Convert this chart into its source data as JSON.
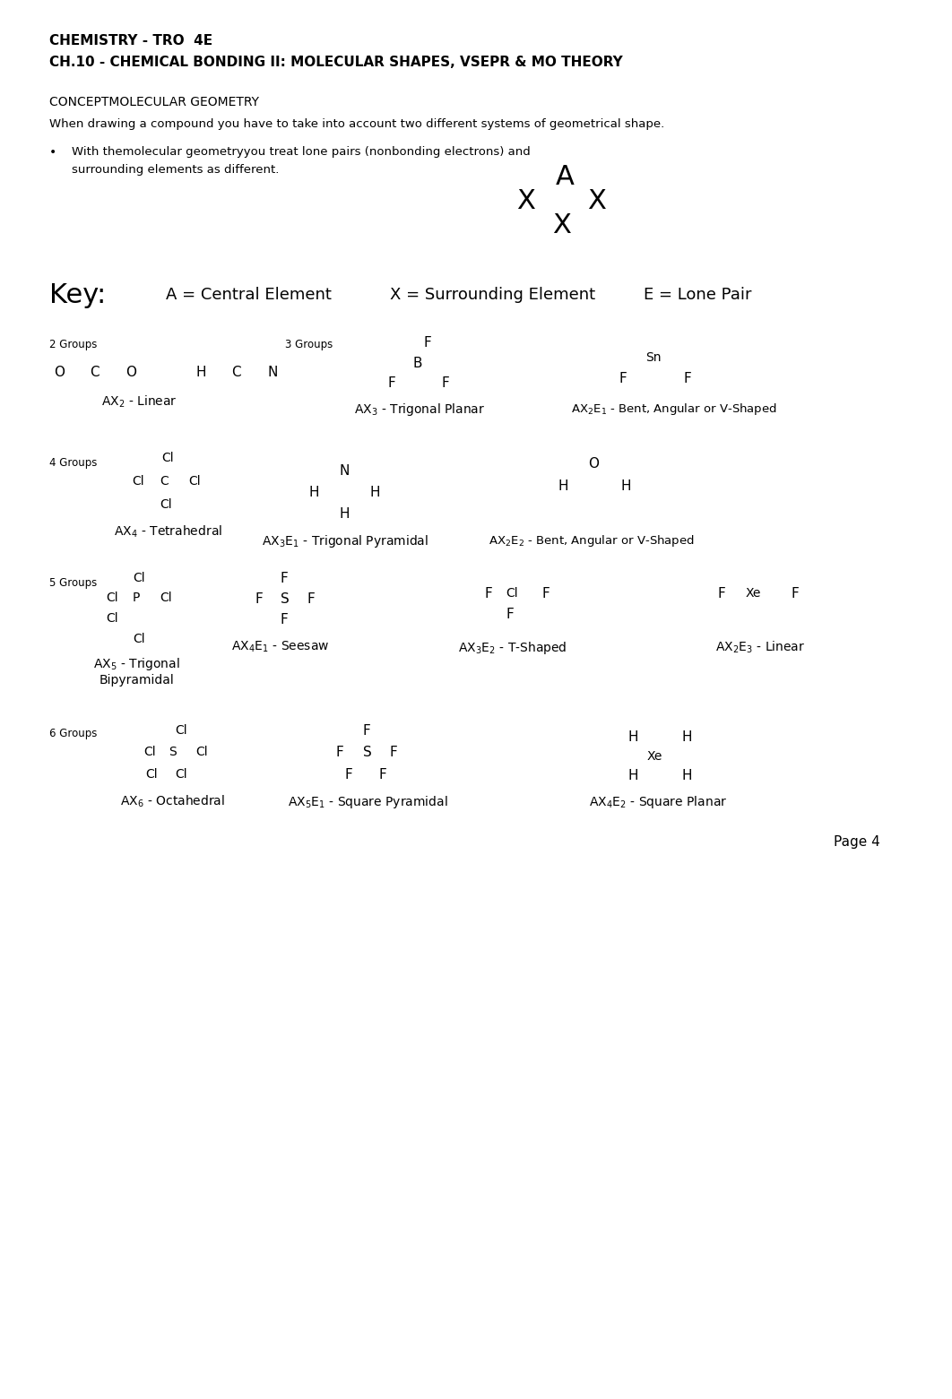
{
  "bg_color": "#ffffff",
  "title1": "CHEMISTRY - TRO  4E",
  "title2": "CH.10 - CHEMICAL BONDING II: MOLECULAR SHAPES, VSEPR & MO THEORY",
  "concept_title": "CONCEPTMOLECULAR GEOMETRY",
  "body_text1": "When drawing a compound you have to take into account two different systems of geometrical shape.",
  "bullet1": "With the​molecular geometry​you treat lone pairs (nonbonding electrons) and",
  "bullet1b": "surrounding elements as different.",
  "page_num": "Page 4"
}
